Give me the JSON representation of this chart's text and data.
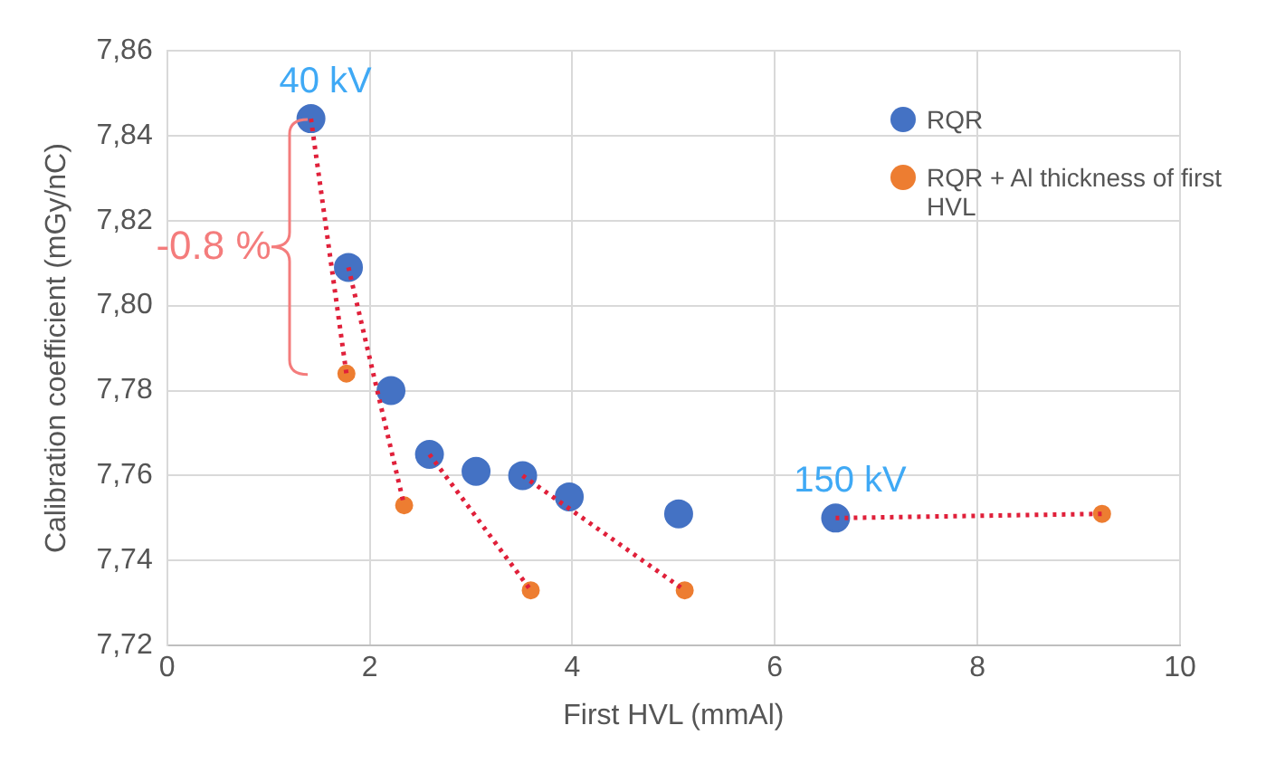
{
  "chart_data": {
    "type": "scatter",
    "xlabel": "First HVL (mmAl)",
    "ylabel": "Calibration coefficient (mGy/nC)",
    "xlim": [
      0,
      10
    ],
    "xticks": [
      0,
      2,
      4,
      6,
      8,
      10
    ],
    "ylim": [
      7.72,
      7.86
    ],
    "yticks": [
      {
        "value": 7.72,
        "label": "7,72"
      },
      {
        "value": 7.74,
        "label": "7,74"
      },
      {
        "value": 7.76,
        "label": "7,76"
      },
      {
        "value": 7.78,
        "label": "7,78"
      },
      {
        "value": 7.8,
        "label": "7,80"
      },
      {
        "value": 7.82,
        "label": "7,82"
      },
      {
        "value": 7.84,
        "label": "7,84"
      },
      {
        "value": 7.86,
        "label": "7,86"
      }
    ],
    "grid": true,
    "legend": "top right",
    "marker": "circle",
    "series": [
      {
        "name": "RQR",
        "color": "#4472c4",
        "x": [
          1.42,
          1.79,
          2.21,
          2.59,
          3.05,
          3.51,
          3.97,
          5.05,
          6.6
        ],
        "values": [
          7.844,
          7.809,
          7.78,
          7.765,
          7.761,
          7.76,
          7.755,
          7.751,
          7.75
        ]
      },
      {
        "name": "RQR + Al thickness of first HVL",
        "color": "#ed7d31",
        "x": [
          1.77,
          2.34,
          3.59,
          5.11,
          9.23
        ],
        "values": [
          7.784,
          7.753,
          7.733,
          7.733,
          7.751
        ]
      },
      {
        "type": "line",
        "color": "#e0203a",
        "line_style": "dotted",
        "marker": "none",
        "x": [
          1.42,
          1.77
        ],
        "values": [
          7.844,
          7.784
        ]
      },
      {
        "type": "line",
        "color": "#e0203a",
        "line_style": "dotted",
        "marker": "none",
        "x": [
          1.79,
          2.34
        ],
        "values": [
          7.809,
          7.753
        ]
      },
      {
        "type": "line",
        "color": "#e0203a",
        "line_style": "dotted",
        "marker": "none",
        "x": [
          2.59,
          3.59
        ],
        "values": [
          7.765,
          7.733
        ]
      },
      {
        "type": "line",
        "color": "#e0203a",
        "line_style": "dotted",
        "marker": "none",
        "x": [
          3.51,
          5.11
        ],
        "values": [
          7.76,
          7.733
        ]
      },
      {
        "type": "line",
        "color": "#e0203a",
        "line_style": "dotted",
        "marker": "none",
        "x": [
          6.6,
          9.23
        ],
        "values": [
          7.75,
          7.751
        ]
      }
    ],
    "annotations": [
      {
        "text": "40 kV",
        "x": 1.42,
        "y": 7.844
      },
      {
        "text": "150 kV",
        "x": 6.6,
        "y": 7.75
      },
      "-0.8 %"
    ]
  }
}
